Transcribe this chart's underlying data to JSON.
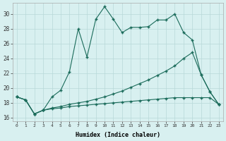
{
  "xlabel": "Humidex (Indice chaleur)",
  "background_color": "#d8f0f0",
  "grid_color": "#b8d8d8",
  "line_color": "#1a6b5a",
  "xlim": [
    -0.5,
    23.5
  ],
  "ylim": [
    15.5,
    31.5
  ],
  "xticks": [
    0,
    1,
    2,
    3,
    4,
    5,
    6,
    7,
    8,
    9,
    10,
    11,
    12,
    13,
    14,
    15,
    16,
    17,
    18,
    19,
    20,
    21,
    22,
    23
  ],
  "yticks": [
    16,
    18,
    20,
    22,
    24,
    26,
    28,
    30
  ],
  "line1_x": [
    0,
    1,
    2,
    3,
    4,
    5,
    6,
    7,
    8,
    9,
    10,
    11,
    12,
    13,
    14,
    15,
    16,
    17,
    18,
    19,
    20,
    21,
    22,
    23
  ],
  "line1_y": [
    18.8,
    18.4,
    16.5,
    17.0,
    18.8,
    19.7,
    22.2,
    28.0,
    24.2,
    29.3,
    31.0,
    29.3,
    27.5,
    28.2,
    28.2,
    28.3,
    29.2,
    29.2,
    30.0,
    27.5,
    26.5,
    21.8,
    19.5,
    17.8
  ],
  "line2_x": [
    0,
    1,
    2,
    3,
    4,
    5,
    6,
    7,
    8,
    9,
    10,
    11,
    12,
    13,
    14,
    15,
    16,
    17,
    18,
    19,
    20,
    21,
    22,
    23
  ],
  "line2_y": [
    18.8,
    18.4,
    16.5,
    17.0,
    17.3,
    17.5,
    17.8,
    18.0,
    18.2,
    18.5,
    18.8,
    19.2,
    19.6,
    20.1,
    20.6,
    21.1,
    21.7,
    22.3,
    23.0,
    24.0,
    24.8,
    21.8,
    19.5,
    17.8
  ],
  "line3_x": [
    0,
    1,
    2,
    3,
    4,
    5,
    6,
    7,
    8,
    9,
    10,
    11,
    12,
    13,
    14,
    15,
    16,
    17,
    18,
    19,
    20,
    21,
    22,
    23
  ],
  "line3_y": [
    18.8,
    18.4,
    16.5,
    17.0,
    17.2,
    17.3,
    17.5,
    17.6,
    17.7,
    17.8,
    17.9,
    18.0,
    18.1,
    18.2,
    18.3,
    18.4,
    18.5,
    18.6,
    18.7,
    18.7,
    18.7,
    18.7,
    18.7,
    17.8
  ]
}
